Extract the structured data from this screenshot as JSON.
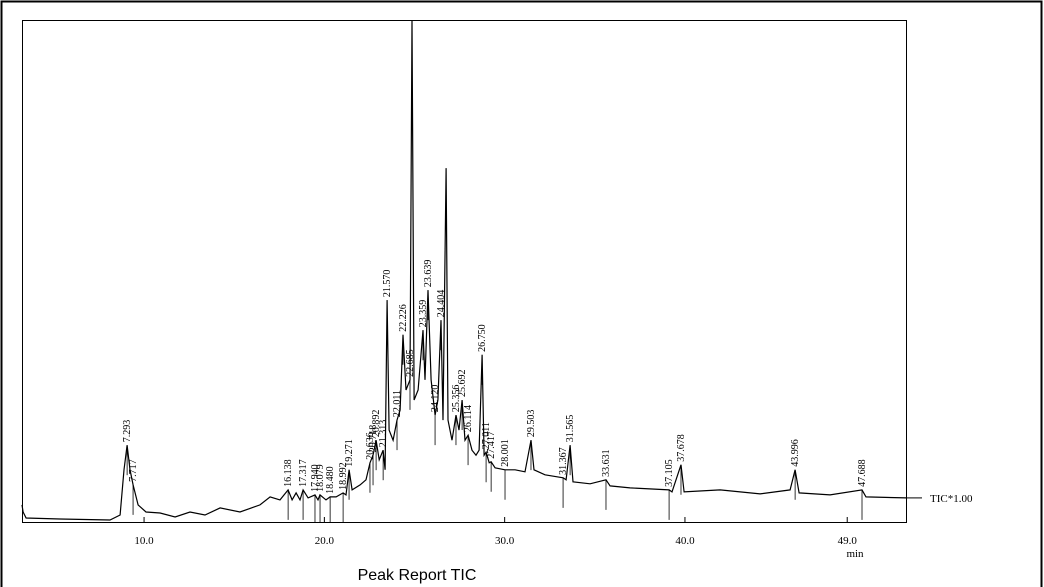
{
  "chart_data": {
    "type": "line",
    "xlabel": "min",
    "caption": "Peak Report TIC",
    "xlim": [
      3.23,
      52.26
    ],
    "ylim": [
      0,
      100
    ],
    "xticks": [
      {
        "value": 10,
        "label": "10.0"
      },
      {
        "value": 20,
        "label": "20.0"
      },
      {
        "value": 30,
        "label": "30.0"
      },
      {
        "value": 40,
        "label": "40.0"
      },
      {
        "value": 49,
        "label": "49.0"
      }
    ],
    "series": [
      {
        "name": "TIC*1.00",
        "color": "#000000",
        "x": [
          3.23,
          3.29,
          3.46,
          5.34,
          8.11,
          8.67,
          8.89,
          9.06,
          9.22,
          9.39,
          9.67,
          10.11,
          10.89,
          11.72,
          12.55,
          13.38,
          14.22,
          15.32,
          16.43,
          16.99,
          17.54,
          17.99,
          18.21,
          18.43,
          18.65,
          18.82,
          19.1,
          19.48,
          19.65,
          19.76,
          20.09,
          20.32,
          20.65,
          21.04,
          21.2,
          21.37,
          21.54,
          21.98,
          22.31,
          22.53,
          22.7,
          22.87,
          23.04,
          23.26,
          23.37,
          23.48,
          23.59,
          23.81,
          24.03,
          24.2,
          24.36,
          24.53,
          24.75,
          24.86,
          24.98,
          25.2,
          25.47,
          25.58,
          25.75,
          25.92,
          26.14,
          26.3,
          26.47,
          26.58,
          26.75,
          26.86,
          27.08,
          27.3,
          27.47,
          27.64,
          27.8,
          27.97,
          28.19,
          28.41,
          28.58,
          28.75,
          28.86,
          28.97,
          29.14,
          29.25,
          29.47,
          30.02,
          30.58,
          31.13,
          31.46,
          31.63,
          32.24,
          33.24,
          33.41,
          33.63,
          33.79,
          34.74,
          35.62,
          35.85,
          36.95,
          39.12,
          39.28,
          39.78,
          39.95,
          41.95,
          44.17,
          45.83,
          46.11,
          46.33,
          48.05,
          49.82,
          50.04,
          52.26
        ],
        "values": [
          3.4,
          2.0,
          0.8,
          0.6,
          0.4,
          1.4,
          10.4,
          15.3,
          10.4,
          7.4,
          3.4,
          2.0,
          1.8,
          1.0,
          2.0,
          1.4,
          2.8,
          2.0,
          3.4,
          5.0,
          4.4,
          6.4,
          4.4,
          5.8,
          4.4,
          6.4,
          4.8,
          5.4,
          4.4,
          5.4,
          4.4,
          5.0,
          5.0,
          5.8,
          5.4,
          10.4,
          6.4,
          7.4,
          8.4,
          11.8,
          13.3,
          16.3,
          12.4,
          14.3,
          10.4,
          44.2,
          18.3,
          16.3,
          20.3,
          22.3,
          37.3,
          26.3,
          28.3,
          100,
          24.3,
          26.3,
          38.2,
          28.3,
          46.2,
          28.3,
          21.3,
          24.3,
          40.2,
          20.3,
          70.5,
          20.3,
          16.3,
          21.3,
          18.3,
          24.3,
          16.3,
          17.3,
          14.3,
          13.3,
          14.3,
          33.3,
          13.3,
          13.9,
          11.8,
          12.0,
          10.8,
          10.4,
          10.4,
          10.0,
          16.3,
          10.4,
          9.4,
          8.8,
          8.4,
          15.3,
          8.0,
          7.6,
          8.4,
          7.2,
          6.8,
          6.4,
          6.0,
          11.4,
          6.0,
          6.4,
          5.6,
          6.4,
          10.4,
          5.8,
          5.4,
          6.4,
          5.0,
          4.8
        ]
      }
    ],
    "peaks": {
      "labels": [
        "7.293",
        "7.717",
        "16.138",
        "17.317",
        "17.940",
        "18.079",
        "18.480",
        "18.992",
        "19.271",
        "20.636",
        "20.718",
        "20.892",
        "21.313",
        "21.570",
        "22.011",
        "22.226",
        "22.685",
        "23.359",
        "23.639",
        "24.120",
        "24.404",
        "25.356",
        "25.692",
        "26.114",
        "26.750",
        "27.011",
        "27.417",
        "28.001",
        "29.503",
        "31.367",
        "31.565",
        "33.631",
        "37.105",
        "37.678",
        "43.996",
        "47.688"
      ],
      "x": [
        9.06,
        9.39,
        17.99,
        18.82,
        19.48,
        19.76,
        20.32,
        21.04,
        21.37,
        22.53,
        22.7,
        22.87,
        23.26,
        23.48,
        24.03,
        24.36,
        24.75,
        25.47,
        25.75,
        26.14,
        26.47,
        27.3,
        27.64,
        27.97,
        28.75,
        28.97,
        29.25,
        30.02,
        31.46,
        33.24,
        33.63,
        35.62,
        39.12,
        39.78,
        46.11,
        49.82
      ],
      "values": [
        15.3,
        7.4,
        6.4,
        6.4,
        5.4,
        5.4,
        5.0,
        5.8,
        10.4,
        11.8,
        13.3,
        16.3,
        14.3,
        44.2,
        20.3,
        37.3,
        28.3,
        38.2,
        46.2,
        21.3,
        40.2,
        21.3,
        24.3,
        17.3,
        33.3,
        13.9,
        12.0,
        10.4,
        16.3,
        8.8,
        15.3,
        8.4,
        6.4,
        11.4,
        10.4,
        6.4
      ]
    }
  }
}
